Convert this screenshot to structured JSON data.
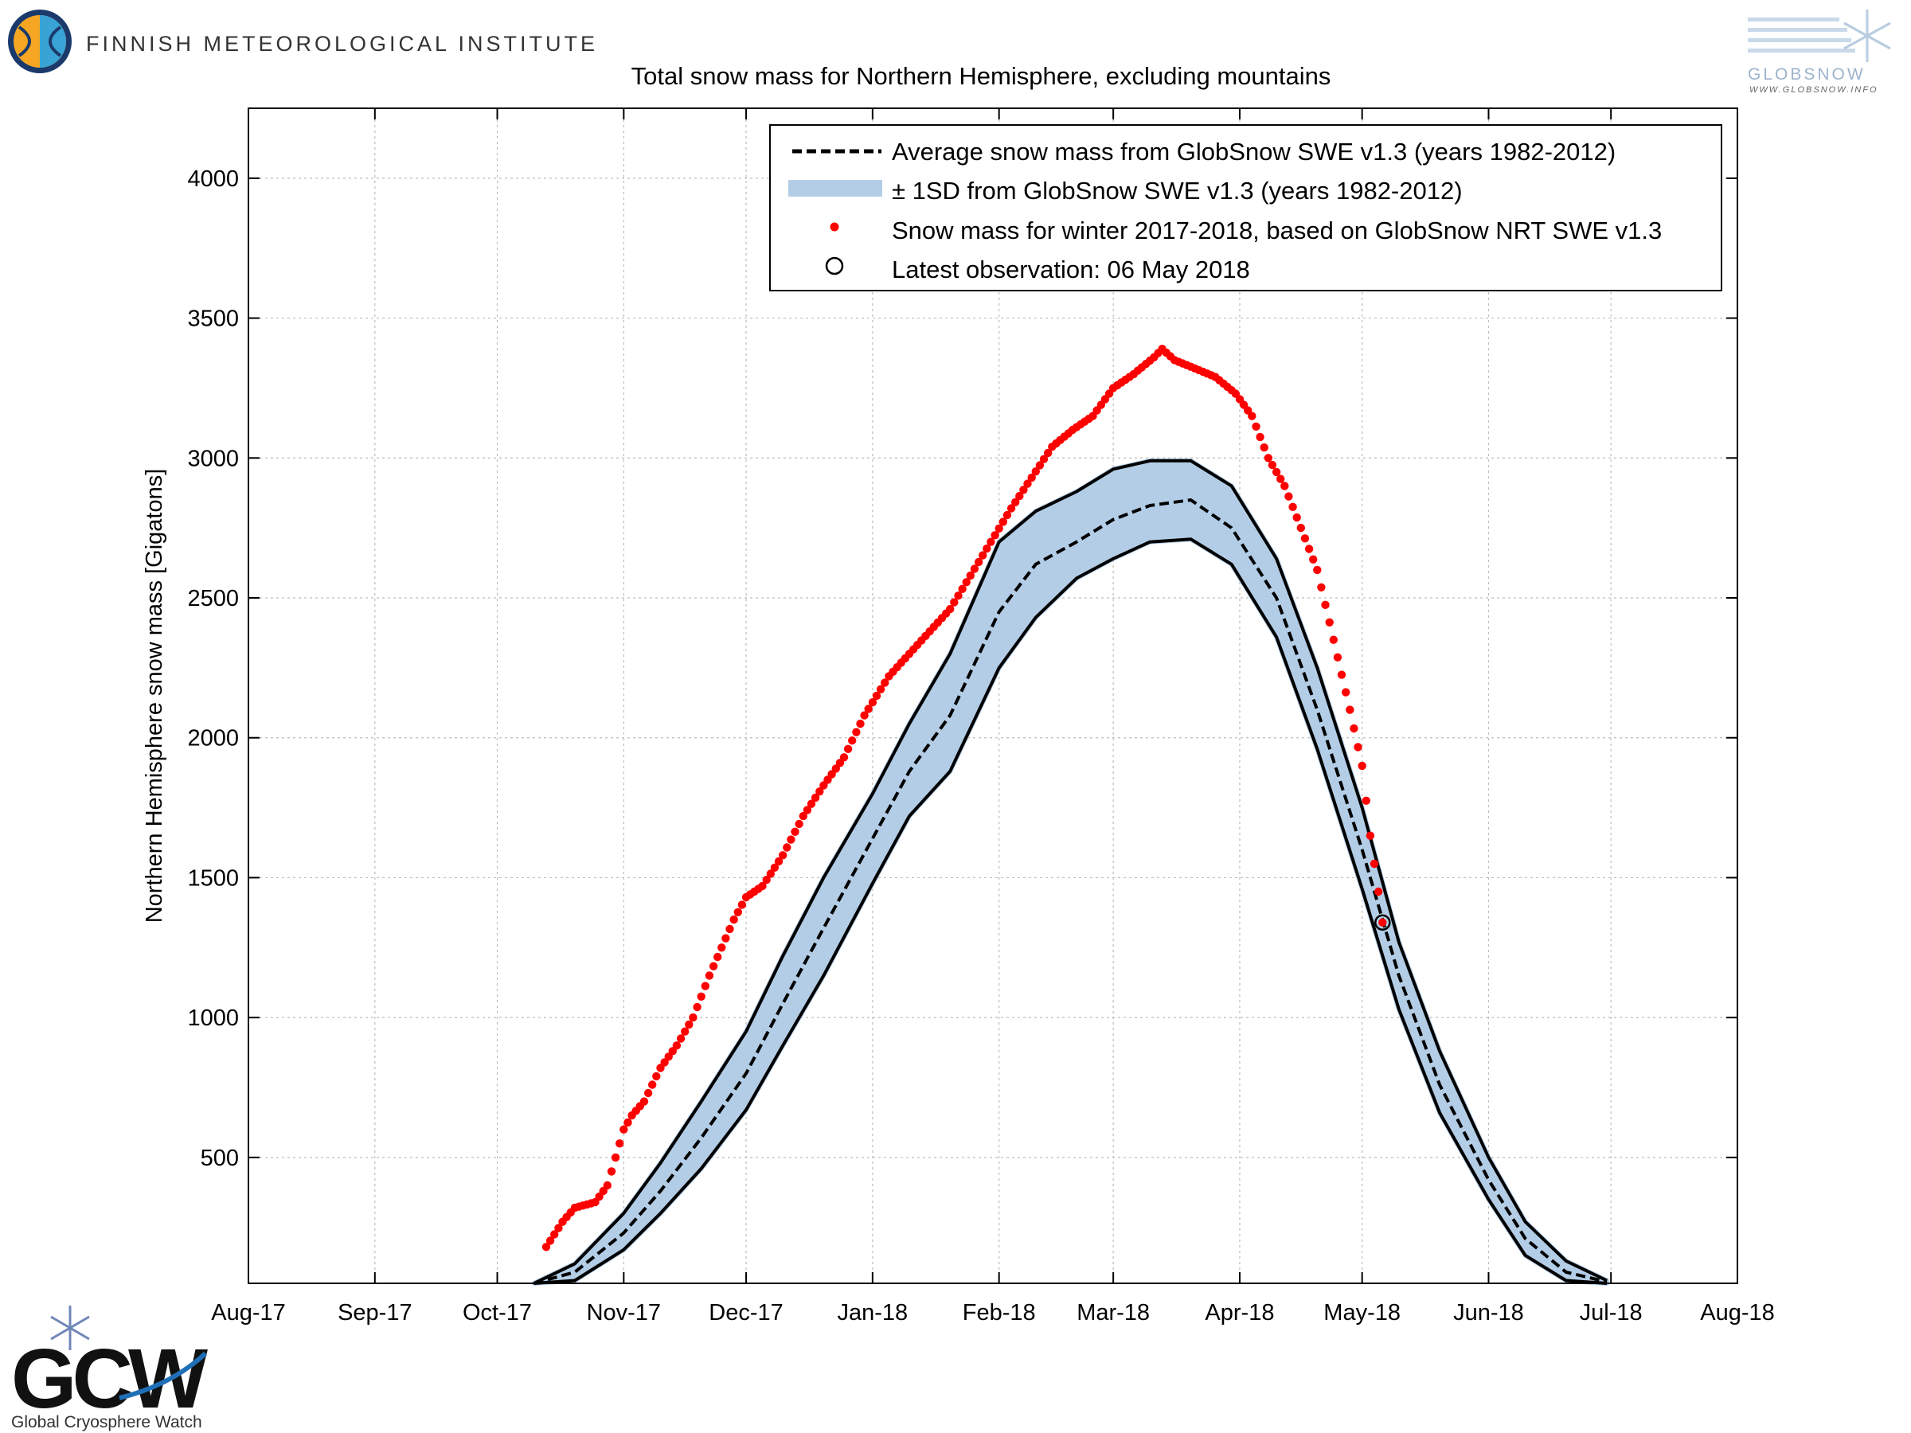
{
  "header": {
    "institute_name": "FINNISH METEOROLOGICAL INSTITUTE",
    "globsnow_logo_text": "GLOBSNOW",
    "globsnow_url": "WWW.GLOBSNOW.INFO",
    "gcw_logo_text": "GCW",
    "gcw_subtitle": "Global Cryosphere Watch"
  },
  "colors": {
    "band_fill": "#b3cde6",
    "observed_points": "#ff0000",
    "average_line": "#000000",
    "envelope_line": "#000000"
  },
  "chart_data": {
    "type": "line",
    "title": "Total snow mass for Northern Hemisphere, excluding mountains",
    "ylabel": "Northern Hemisphere snow mass [Gigatons]",
    "xlabel": "",
    "ylim": [
      50,
      4250
    ],
    "xlim": [
      "2017-08-01",
      "2018-08-01"
    ],
    "yticks": [
      500,
      1000,
      1500,
      2000,
      2500,
      3000,
      3500,
      4000
    ],
    "xtick_dates": [
      "2017-08-01",
      "2017-09-01",
      "2017-10-01",
      "2017-11-01",
      "2017-12-01",
      "2018-01-01",
      "2018-02-01",
      "2018-03-01",
      "2018-04-01",
      "2018-05-01",
      "2018-06-01",
      "2018-07-01",
      "2018-08-01"
    ],
    "xtick_labels": [
      "Aug-17",
      "Sep-17",
      "Oct-17",
      "Nov-17",
      "Dec-17",
      "Jan-18",
      "Feb-18",
      "Mar-18",
      "Apr-18",
      "May-18",
      "Jun-18",
      "Jul-18",
      "Aug-18"
    ],
    "grid": true,
    "legend_position": "top-right",
    "legend": [
      {
        "label": "Average snow mass from GlobSnow SWE v1.3 (years 1982-2012)",
        "style": "dashed-line"
      },
      {
        "label": "± 1SD from GlobSnow SWE v1.3 (years 1982-2012)",
        "style": "band"
      },
      {
        "label": "Snow mass for winter 2017-2018, based on GlobSnow NRT SWE v1.3",
        "style": "dots"
      },
      {
        "label": "Latest observation: 06 May 2018",
        "style": "open-circle"
      }
    ],
    "series": [
      {
        "name": "Average snow mass from GlobSnow SWE v1.3 (years 1982-2012)",
        "points": [
          [
            "2017-10-10",
            50
          ],
          [
            "2017-10-20",
            90
          ],
          [
            "2017-11-01",
            230
          ],
          [
            "2017-11-10",
            380
          ],
          [
            "2017-11-20",
            570
          ],
          [
            "2017-12-01",
            800
          ],
          [
            "2017-12-10",
            1050
          ],
          [
            "2017-12-20",
            1320
          ],
          [
            "2018-01-01",
            1640
          ],
          [
            "2018-01-10",
            1880
          ],
          [
            "2018-01-20",
            2080
          ],
          [
            "2018-02-01",
            2450
          ],
          [
            "2018-02-10",
            2620
          ],
          [
            "2018-02-20",
            2700
          ],
          [
            "2018-03-01",
            2780
          ],
          [
            "2018-03-10",
            2830
          ],
          [
            "2018-03-20",
            2850
          ],
          [
            "2018-03-30",
            2750
          ],
          [
            "2018-04-10",
            2500
          ],
          [
            "2018-04-20",
            2100
          ],
          [
            "2018-05-01",
            1600
          ],
          [
            "2018-05-10",
            1150
          ],
          [
            "2018-05-20",
            760
          ],
          [
            "2018-06-01",
            420
          ],
          [
            "2018-06-10",
            210
          ],
          [
            "2018-06-20",
            90
          ],
          [
            "2018-06-30",
            55
          ]
        ]
      },
      {
        "name": "± 1SD from GlobSnow SWE v1.3 (years 1982-2012)",
        "upper": [
          [
            "2017-10-10",
            50
          ],
          [
            "2017-10-20",
            120
          ],
          [
            "2017-11-01",
            300
          ],
          [
            "2017-11-10",
            480
          ],
          [
            "2017-11-20",
            700
          ],
          [
            "2017-12-01",
            950
          ],
          [
            "2017-12-10",
            1220
          ],
          [
            "2017-12-20",
            1500
          ],
          [
            "2018-01-01",
            1800
          ],
          [
            "2018-01-10",
            2050
          ],
          [
            "2018-01-20",
            2300
          ],
          [
            "2018-02-01",
            2700
          ],
          [
            "2018-02-10",
            2810
          ],
          [
            "2018-02-20",
            2880
          ],
          [
            "2018-03-01",
            2960
          ],
          [
            "2018-03-10",
            2990
          ],
          [
            "2018-03-20",
            2990
          ],
          [
            "2018-03-30",
            2900
          ],
          [
            "2018-04-10",
            2640
          ],
          [
            "2018-04-20",
            2250
          ],
          [
            "2018-05-01",
            1750
          ],
          [
            "2018-05-10",
            1270
          ],
          [
            "2018-05-20",
            880
          ],
          [
            "2018-06-01",
            500
          ],
          [
            "2018-06-10",
            270
          ],
          [
            "2018-06-20",
            130
          ],
          [
            "2018-06-30",
            60
          ]
        ],
        "lower": [
          [
            "2017-10-10",
            50
          ],
          [
            "2017-10-20",
            60
          ],
          [
            "2017-11-01",
            170
          ],
          [
            "2017-11-10",
            300
          ],
          [
            "2017-11-20",
            460
          ],
          [
            "2017-12-01",
            670
          ],
          [
            "2017-12-10",
            900
          ],
          [
            "2017-12-20",
            1150
          ],
          [
            "2018-01-01",
            1480
          ],
          [
            "2018-01-10",
            1720
          ],
          [
            "2018-01-20",
            1880
          ],
          [
            "2018-02-01",
            2250
          ],
          [
            "2018-02-10",
            2430
          ],
          [
            "2018-02-20",
            2570
          ],
          [
            "2018-03-01",
            2640
          ],
          [
            "2018-03-10",
            2700
          ],
          [
            "2018-03-20",
            2710
          ],
          [
            "2018-03-30",
            2620
          ],
          [
            "2018-04-10",
            2360
          ],
          [
            "2018-04-20",
            1960
          ],
          [
            "2018-05-01",
            1460
          ],
          [
            "2018-05-10",
            1030
          ],
          [
            "2018-05-20",
            660
          ],
          [
            "2018-06-01",
            350
          ],
          [
            "2018-06-10",
            150
          ],
          [
            "2018-06-20",
            60
          ],
          [
            "2018-06-30",
            50
          ]
        ]
      },
      {
        "name": "Snow mass for winter 2017-2018, based on GlobSnow NRT SWE v1.3",
        "points": [
          [
            "2017-10-13",
            180
          ],
          [
            "2017-10-17",
            270
          ],
          [
            "2017-10-20",
            320
          ],
          [
            "2017-10-25",
            340
          ],
          [
            "2017-10-28",
            400
          ],
          [
            "2017-11-01",
            600
          ],
          [
            "2017-11-03",
            650
          ],
          [
            "2017-11-06",
            700
          ],
          [
            "2017-11-10",
            820
          ],
          [
            "2017-11-14",
            900
          ],
          [
            "2017-11-18",
            1000
          ],
          [
            "2017-11-22",
            1150
          ],
          [
            "2017-11-25",
            1250
          ],
          [
            "2017-11-28",
            1350
          ],
          [
            "2017-12-01",
            1430
          ],
          [
            "2017-12-05",
            1470
          ],
          [
            "2017-12-10",
            1580
          ],
          [
            "2017-12-15",
            1720
          ],
          [
            "2017-12-20",
            1830
          ],
          [
            "2017-12-25",
            1930
          ],
          [
            "2017-12-30",
            2080
          ],
          [
            "2018-01-05",
            2220
          ],
          [
            "2018-01-10",
            2300
          ],
          [
            "2018-01-15",
            2380
          ],
          [
            "2018-01-20",
            2460
          ],
          [
            "2018-01-25",
            2580
          ],
          [
            "2018-01-30",
            2700
          ],
          [
            "2018-02-04",
            2820
          ],
          [
            "2018-02-09",
            2930
          ],
          [
            "2018-02-14",
            3040
          ],
          [
            "2018-02-19",
            3100
          ],
          [
            "2018-02-24",
            3150
          ],
          [
            "2018-03-01",
            3250
          ],
          [
            "2018-03-06",
            3300
          ],
          [
            "2018-03-11",
            3360
          ],
          [
            "2018-03-13",
            3390
          ],
          [
            "2018-03-16",
            3350
          ],
          [
            "2018-03-21",
            3320
          ],
          [
            "2018-03-26",
            3290
          ],
          [
            "2018-03-31",
            3230
          ],
          [
            "2018-04-04",
            3150
          ],
          [
            "2018-04-08",
            3000
          ],
          [
            "2018-04-12",
            2900
          ],
          [
            "2018-04-16",
            2750
          ],
          [
            "2018-04-20",
            2600
          ],
          [
            "2018-04-24",
            2350
          ],
          [
            "2018-04-28",
            2100
          ],
          [
            "2018-05-01",
            1900
          ],
          [
            "2018-05-03",
            1650
          ],
          [
            "2018-05-05",
            1450
          ],
          [
            "2018-05-06",
            1340
          ]
        ]
      },
      {
        "name": "Latest observation: 06 May 2018",
        "points": [
          [
            "2018-05-06",
            1340
          ]
        ]
      }
    ]
  }
}
